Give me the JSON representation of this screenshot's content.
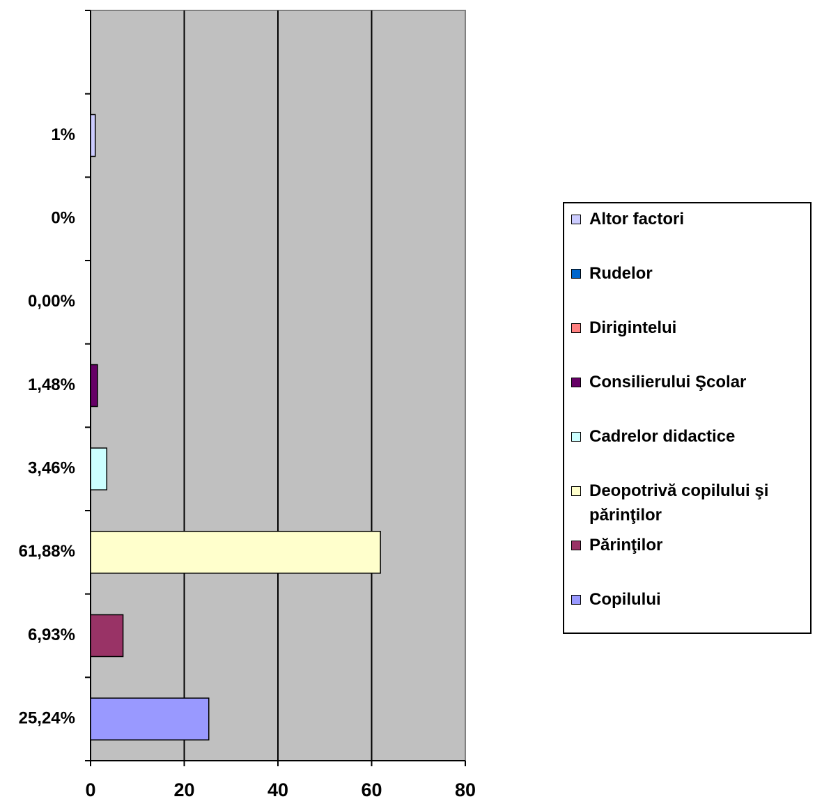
{
  "chart_data": {
    "type": "bar",
    "orientation": "horizontal",
    "categories": [
      "Copilului",
      "Părinţilor",
      "Deopotrivă copilului şi părinţilor",
      "Cadrelor didactice",
      "Consilierului Şcolar",
      "Dirigintelui",
      "Rudelor",
      "Altor factori",
      null
    ],
    "values": [
      25.24,
      6.93,
      61.88,
      3.46,
      1.48,
      0,
      0,
      1,
      null
    ],
    "value_labels": [
      "25,24%",
      "6,93%",
      "61,88%",
      "3,46%",
      "1,48%",
      "0,00%",
      "0%",
      "1%",
      null
    ],
    "colors": [
      "#9999ff",
      "#993366",
      "#ffffcc",
      "#ccffff",
      "#660066",
      "#ff8080",
      "#0066cc",
      "#ccccff",
      null
    ],
    "xlim": [
      0,
      80
    ],
    "xticks": [
      0,
      20,
      40,
      60,
      80
    ],
    "grid": true,
    "legend": "right"
  }
}
